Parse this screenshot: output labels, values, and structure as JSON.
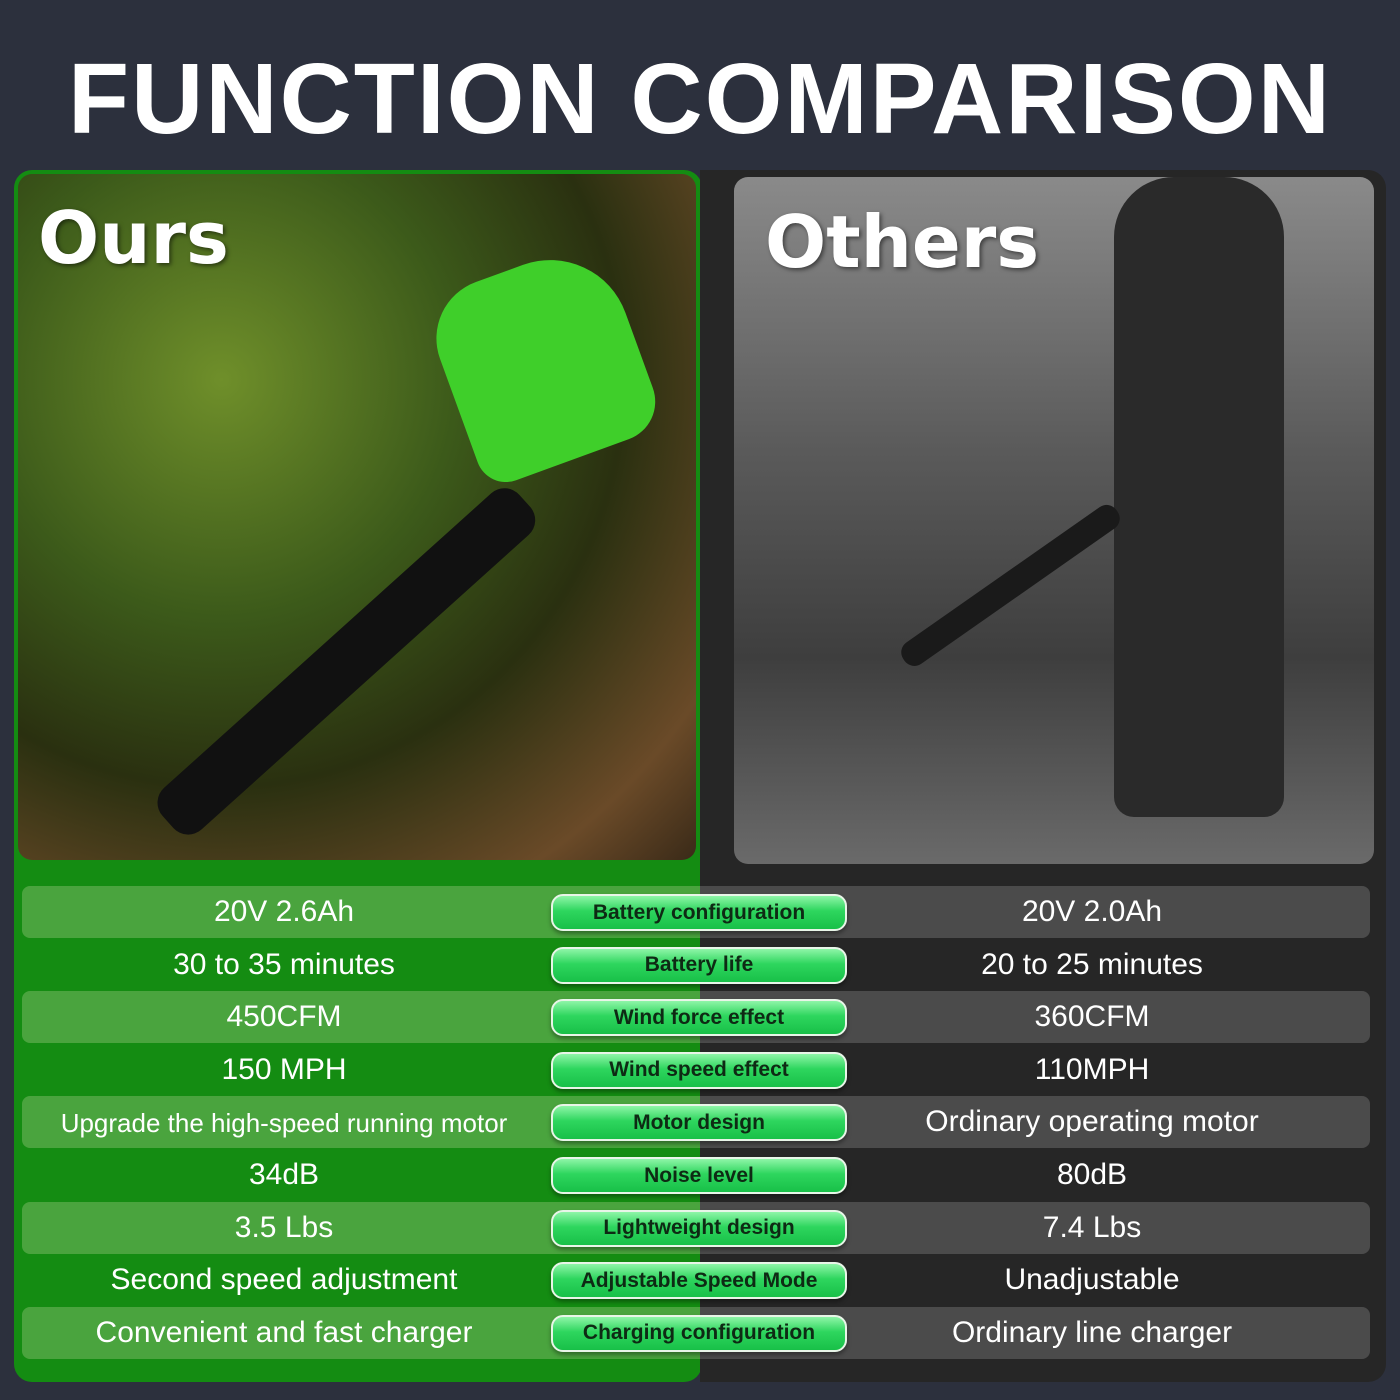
{
  "title": "FUNCTION COMPARISON",
  "ours": {
    "label": "Ours"
  },
  "others": {
    "label": "Others"
  },
  "colors": {
    "background": "#2c303d",
    "ours_panel": "#148c12",
    "ours_stripe": "#4aa43e",
    "others_panel": "#262626",
    "others_stripe": "#4b4b4b",
    "pill": "#2ed65e"
  },
  "rows": [
    {
      "feature": "Battery configuration",
      "ours": "20V 2.6Ah",
      "others": "20V 2.0Ah"
    },
    {
      "feature": "Battery life",
      "ours": "30 to 35 minutes",
      "others": "20 to 25 minutes"
    },
    {
      "feature": "Wind force effect",
      "ours": "450CFM",
      "others": "360CFM"
    },
    {
      "feature": "Wind speed effect",
      "ours": "150 MPH",
      "others": "110MPH"
    },
    {
      "feature": "Motor design",
      "ours": "Upgrade the high-speed running motor",
      "others": "Ordinary operating motor"
    },
    {
      "feature": "Noise level",
      "ours": "34dB",
      "others": "80dB"
    },
    {
      "feature": "Lightweight design",
      "ours": "3.5 Lbs",
      "others": "7.4 Lbs"
    },
    {
      "feature": "Adjustable Speed Mode",
      "ours": "Second speed adjustment",
      "others": "Unadjustable"
    },
    {
      "feature": "Charging configuration",
      "ours": "Convenient and fast charger",
      "others": "Ordinary line charger"
    }
  ]
}
